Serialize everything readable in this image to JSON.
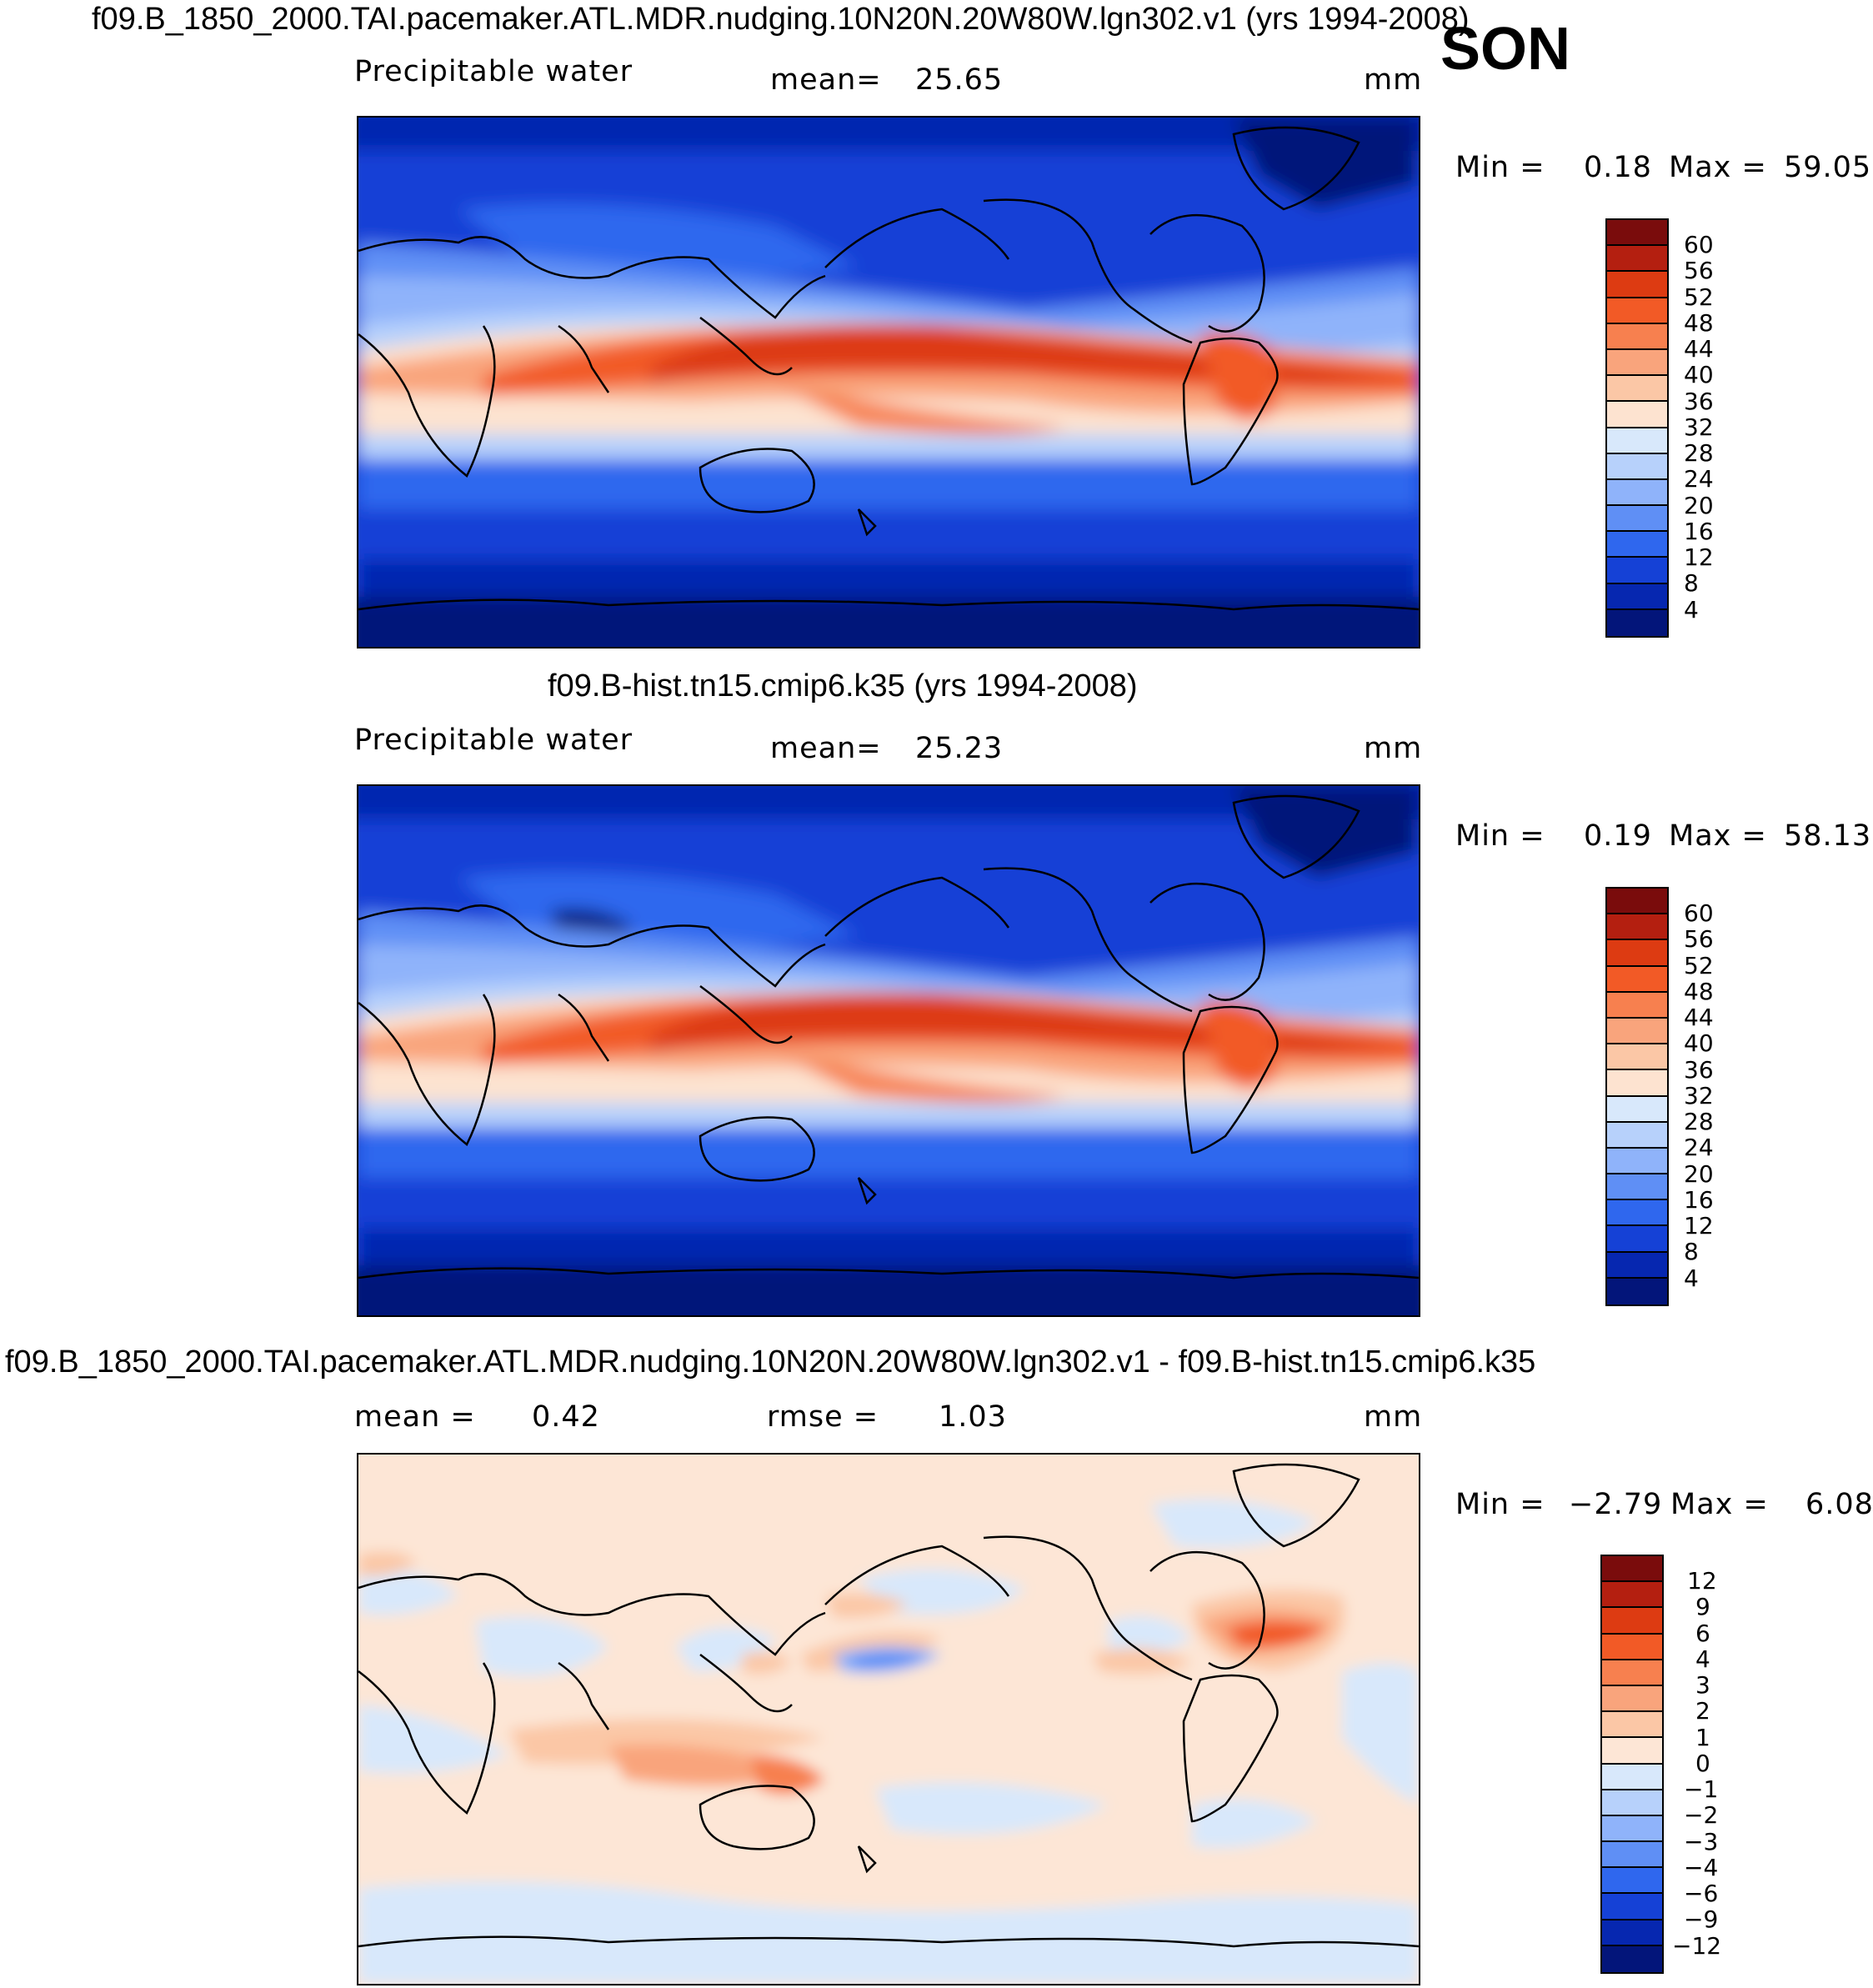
{
  "season": "SON",
  "panel1": {
    "title": "f09.B_1850_2000.TAI.pacemaker.ATL.MDR.nudging.10N20N.20W80W.lgn302.v1 (yrs 1994-2008)",
    "variable": "Precipitable water",
    "mean_label": "mean=",
    "mean_value": "25.65",
    "units": "mm",
    "min_label": "Min =",
    "min_value": "0.18",
    "max_label": "Max =",
    "max_value": "59.05",
    "colorbar_labels": [
      "60",
      "56",
      "52",
      "48",
      "44",
      "40",
      "36",
      "32",
      "28",
      "24",
      "20",
      "16",
      "12",
      "8",
      "4"
    ]
  },
  "panel2": {
    "title": "f09.B-hist.tn15.cmip6.k35 (yrs 1994-2008)",
    "variable": "Precipitable water",
    "mean_label": "mean=",
    "mean_value": "25.23",
    "units": "mm",
    "min_label": "Min =",
    "min_value": "0.19",
    "max_label": "Max =",
    "max_value": "58.13",
    "colorbar_labels": [
      "60",
      "56",
      "52",
      "48",
      "44",
      "40",
      "36",
      "32",
      "28",
      "24",
      "20",
      "16",
      "12",
      "8",
      "4"
    ]
  },
  "panel3": {
    "title": "f09.B_1850_2000.TAI.pacemaker.ATL.MDR.nudging.10N20N.20W80W.lgn302.v1 - f09.B-hist.tn15.cmip6.k35",
    "mean_label": "mean =",
    "mean_value": "0.42",
    "rmse_label": "rmse =",
    "rmse_value": "1.03",
    "units": "mm",
    "min_label": "Min =",
    "min_value": "−2.79",
    "max_label": "Max =",
    "max_value": "6.08",
    "colorbar_labels": [
      "12",
      "9",
      "6",
      "4",
      "3",
      "2",
      "1",
      "0",
      "−1",
      "−2",
      "−3",
      "−4",
      "−6",
      "−9",
      "−12"
    ]
  },
  "colors": {
    "pw_scale": [
      "#7a0c0c",
      "#b41f10",
      "#dd3b12",
      "#f25a26",
      "#f7804f",
      "#f9a47c",
      "#fbc7a6",
      "#fde3d0",
      "#d8e8fb",
      "#b7d1fb",
      "#8fb3fa",
      "#5f8ff5",
      "#2f67ee",
      "#1541d6",
      "#0627b0",
      "#03157a"
    ],
    "diff_scale": [
      "#7a0c0c",
      "#b41f10",
      "#dd3b12",
      "#f25a26",
      "#f7804f",
      "#f9a47c",
      "#fbc7a6",
      "#fde6d6",
      "#d8e8fb",
      "#b7d1fb",
      "#8fb3fa",
      "#5f8ff5",
      "#2f67ee",
      "#1541d6",
      "#0627b0",
      "#03157a"
    ]
  }
}
